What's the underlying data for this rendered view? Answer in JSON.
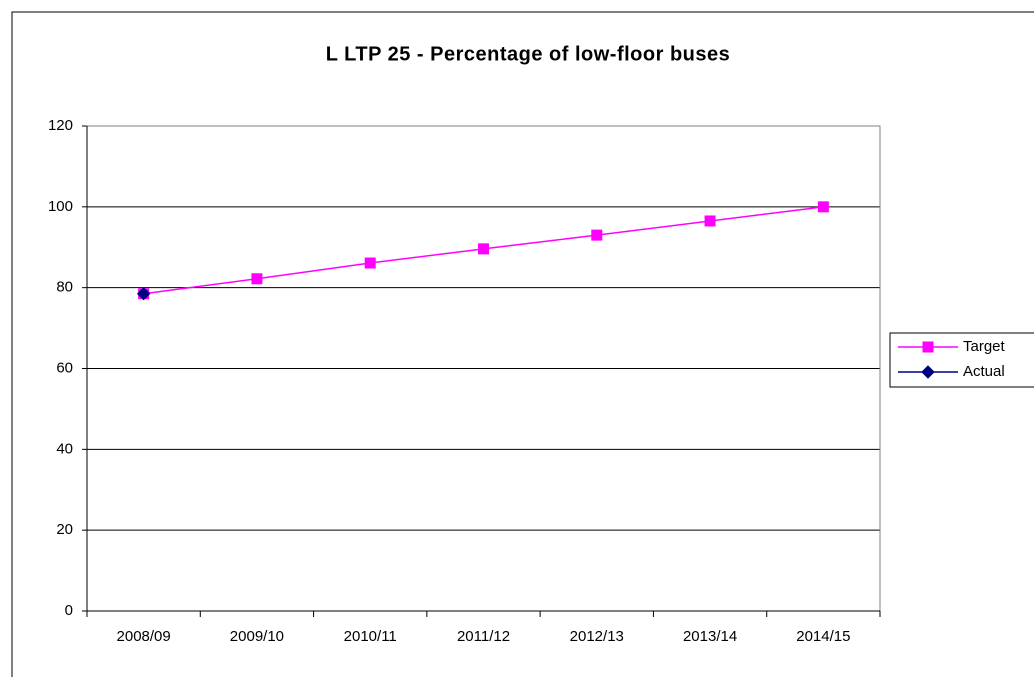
{
  "chart_data": {
    "type": "line",
    "title": "L LTP 25 - Percentage of low-floor buses",
    "categories": [
      "2008/09",
      "2009/10",
      "2010/11",
      "2011/12",
      "2012/13",
      "2013/14",
      "2014/15"
    ],
    "series": [
      {
        "name": "Target",
        "color": "#ff00ff",
        "marker": "square",
        "values": [
          78.5,
          82.2,
          86.1,
          89.6,
          93.0,
          96.5,
          100
        ]
      },
      {
        "name": "Actual",
        "color": "#000080",
        "marker": "diamond",
        "values": [
          78.5,
          null,
          null,
          null,
          null,
          null,
          null
        ]
      }
    ],
    "ylim": [
      0,
      120
    ],
    "yticks": [
      0,
      20,
      40,
      60,
      80,
      100,
      120
    ],
    "grid": true,
    "legend": "right"
  }
}
